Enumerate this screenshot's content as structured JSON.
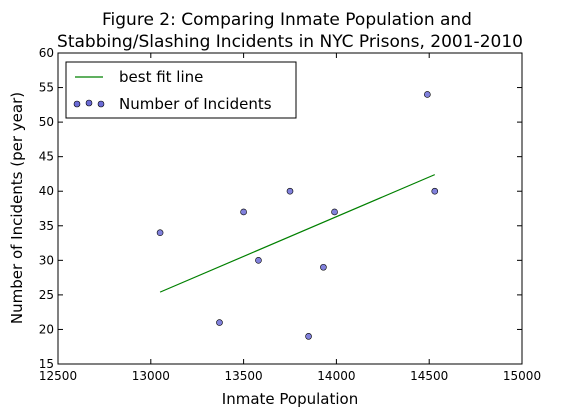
{
  "chart_data": {
    "type": "scatter",
    "title_line1": "Figure 2: Comparing Inmate Population and",
    "title_line2": "Stabbing/Slashing Incidents in NYC Prisons, 2001-2010",
    "xlabel": "Inmate Population",
    "ylabel": "Number of Incidents (per year)",
    "xlim": [
      12500,
      15000
    ],
    "ylim": [
      15,
      60
    ],
    "xticks": [
      12500,
      13000,
      13500,
      14000,
      14500,
      15000
    ],
    "yticks": [
      15,
      20,
      25,
      30,
      35,
      40,
      45,
      50,
      55,
      60
    ],
    "legend_position": "top-left",
    "series": [
      {
        "name": "best fit line",
        "kind": "line",
        "color": "#008000",
        "points": [
          [
            13050,
            25.4
          ],
          [
            14530,
            42.4
          ]
        ]
      },
      {
        "name": "Number of Incidents",
        "kind": "scatter",
        "color": "#6b6bd6",
        "points": [
          [
            13050,
            34
          ],
          [
            13370,
            21
          ],
          [
            13500,
            37
          ],
          [
            13580,
            30
          ],
          [
            13750,
            40
          ],
          [
            13850,
            19
          ],
          [
            13930,
            29
          ],
          [
            13990,
            37
          ],
          [
            14490,
            54
          ],
          [
            14530,
            40
          ]
        ]
      }
    ]
  }
}
